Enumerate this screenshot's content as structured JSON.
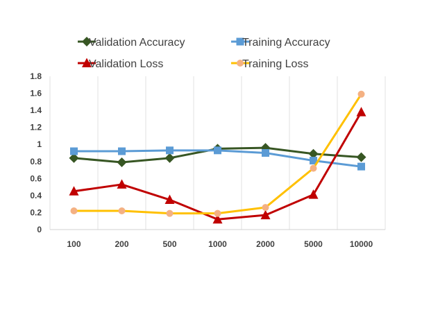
{
  "chart_data": {
    "type": "line",
    "categories": [
      "100",
      "200",
      "500",
      "1000",
      "2000",
      "5000",
      "10000"
    ],
    "ylim": [
      0,
      1.8
    ],
    "yticks": [
      "0",
      "0.2",
      "0.4",
      "0.6",
      "0.8",
      "1",
      "1.2",
      "1.4",
      "1.6",
      "1.8"
    ],
    "grid": "vertical",
    "legend_position": "top",
    "series": [
      {
        "name": "Validation Accuracy",
        "color": "#375623",
        "marker": "diamond",
        "values": [
          0.84,
          0.79,
          0.84,
          0.95,
          0.96,
          0.89,
          0.85
        ]
      },
      {
        "name": "Training Accuracy",
        "color": "#5b9bd5",
        "marker": "square",
        "values": [
          0.92,
          0.92,
          0.93,
          0.93,
          0.9,
          0.81,
          0.74
        ]
      },
      {
        "name": "Validation Loss",
        "color": "#c00000",
        "marker": "triangle",
        "values": [
          0.45,
          0.53,
          0.35,
          0.12,
          0.17,
          0.41,
          1.38
        ]
      },
      {
        "name": "Training Loss",
        "color": "#ffc000",
        "marker": "circle",
        "marker_color": "#f4b183",
        "values": [
          0.22,
          0.22,
          0.19,
          0.19,
          0.26,
          0.72,
          1.59
        ]
      }
    ]
  }
}
